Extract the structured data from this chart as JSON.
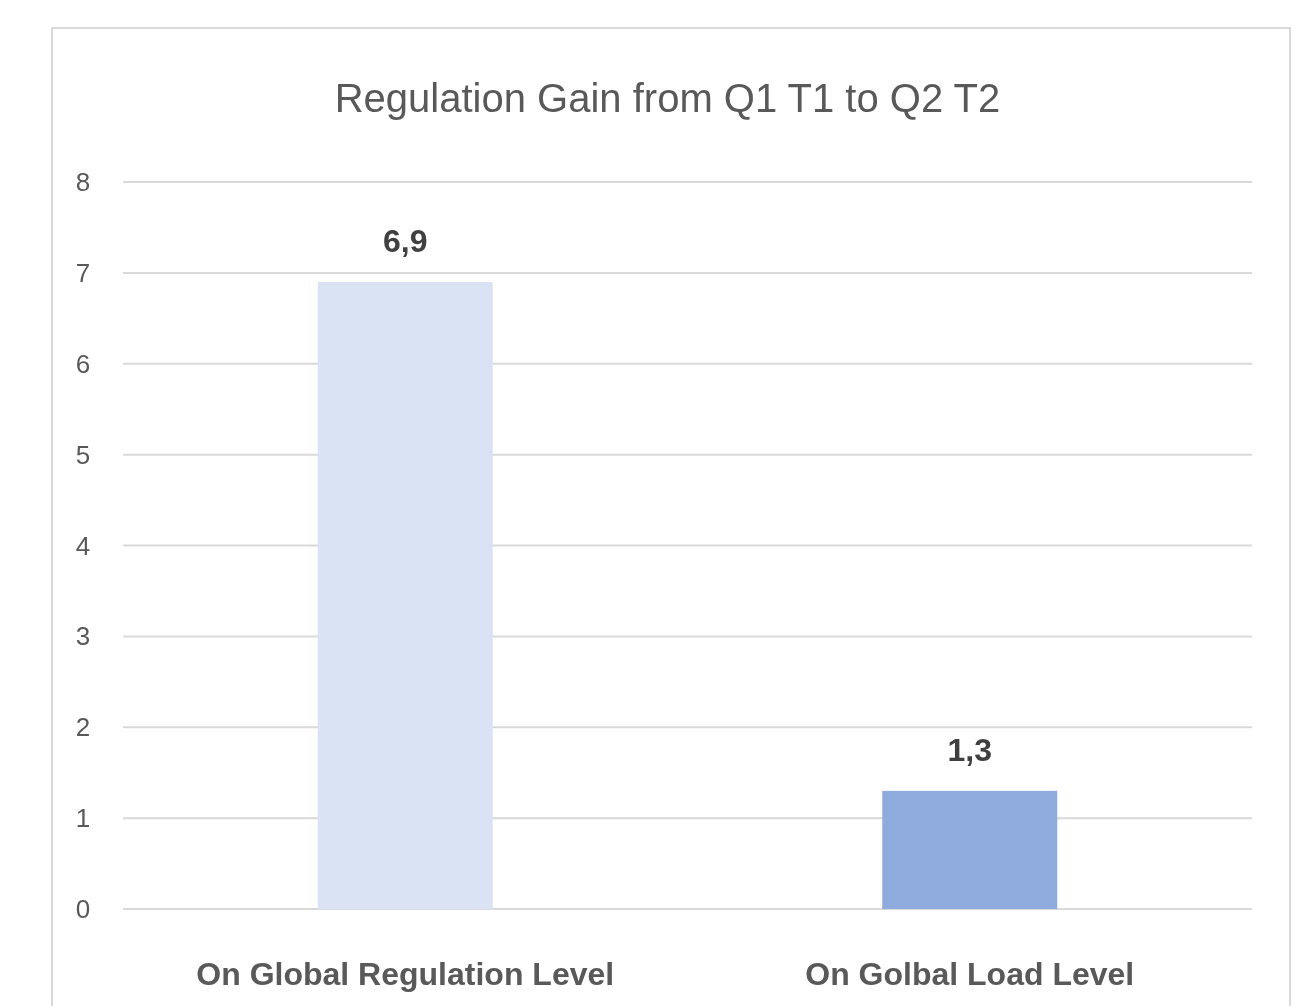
{
  "chart_data": {
    "type": "bar",
    "title": "Regulation Gain from Q1 T1 to Q2 T2",
    "categories": [
      "On Global Regulation Level",
      "On Golbal Load Level"
    ],
    "values": [
      6.9,
      1.3
    ],
    "colors": [
      "#dae3f3",
      "#8faadc"
    ],
    "value_labels": [
      "6,9",
      "1,3"
    ],
    "ylim": [
      0,
      8
    ],
    "yticks": [
      0,
      1,
      2,
      3,
      4,
      5,
      6,
      7,
      8
    ],
    "grid": "y"
  }
}
